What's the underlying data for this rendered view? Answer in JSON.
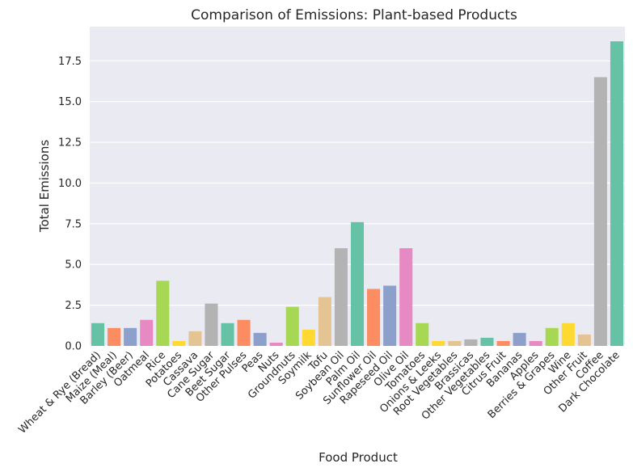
{
  "chart_data": {
    "type": "bar",
    "title": "Comparison of Emissions: Plant-based Products",
    "xlabel": "Food Product",
    "ylabel": "Total Emissions",
    "ylim": [
      0,
      19.6
    ],
    "yticks": [
      0.0,
      2.5,
      5.0,
      7.5,
      10.0,
      12.5,
      15.0,
      17.5
    ],
    "ytick_labels": [
      "0.0",
      "2.5",
      "5.0",
      "7.5",
      "10.0",
      "12.5",
      "15.0",
      "17.5"
    ],
    "grid": true,
    "categories": [
      "Wheat & Rye (Bread)",
      "Maize (Meal)",
      "Barley (Beer)",
      "Oatmeal",
      "Rice",
      "Potatoes",
      "Cassava",
      "Cane Sugar",
      "Beet Sugar",
      "Other Pulses",
      "Peas",
      "Nuts",
      "Groundnuts",
      "Soymilk",
      "Tofu",
      "Soybean Oil",
      "Palm Oil",
      "Sunflower Oil",
      "Rapeseed Oil",
      "Olive Oil",
      "Tomatoes",
      "Onions & Leeks",
      "Root Vegetables",
      "Brassicas",
      "Other Vegetables",
      "Citrus Fruit",
      "Bananas",
      "Apples",
      "Berries & Grapes",
      "Wine",
      "Other Fruit",
      "Coffee",
      "Dark Chocolate"
    ],
    "values": [
      1.4,
      1.1,
      1.1,
      1.6,
      4.0,
      0.3,
      0.9,
      2.6,
      1.4,
      1.6,
      0.8,
      0.2,
      2.4,
      1.0,
      3.0,
      6.0,
      7.6,
      3.5,
      3.7,
      6.0,
      1.4,
      0.3,
      0.3,
      0.4,
      0.5,
      0.3,
      0.8,
      0.3,
      1.1,
      1.4,
      0.7,
      16.5,
      18.7
    ],
    "colors": [
      "#66c2a5",
      "#fc8d62",
      "#8da0cb",
      "#e78ac3",
      "#a6d854",
      "#ffd92f",
      "#e5c494",
      "#b3b3b3"
    ],
    "background_color": "#eaeaf2",
    "grid_color": "#ffffff"
  }
}
